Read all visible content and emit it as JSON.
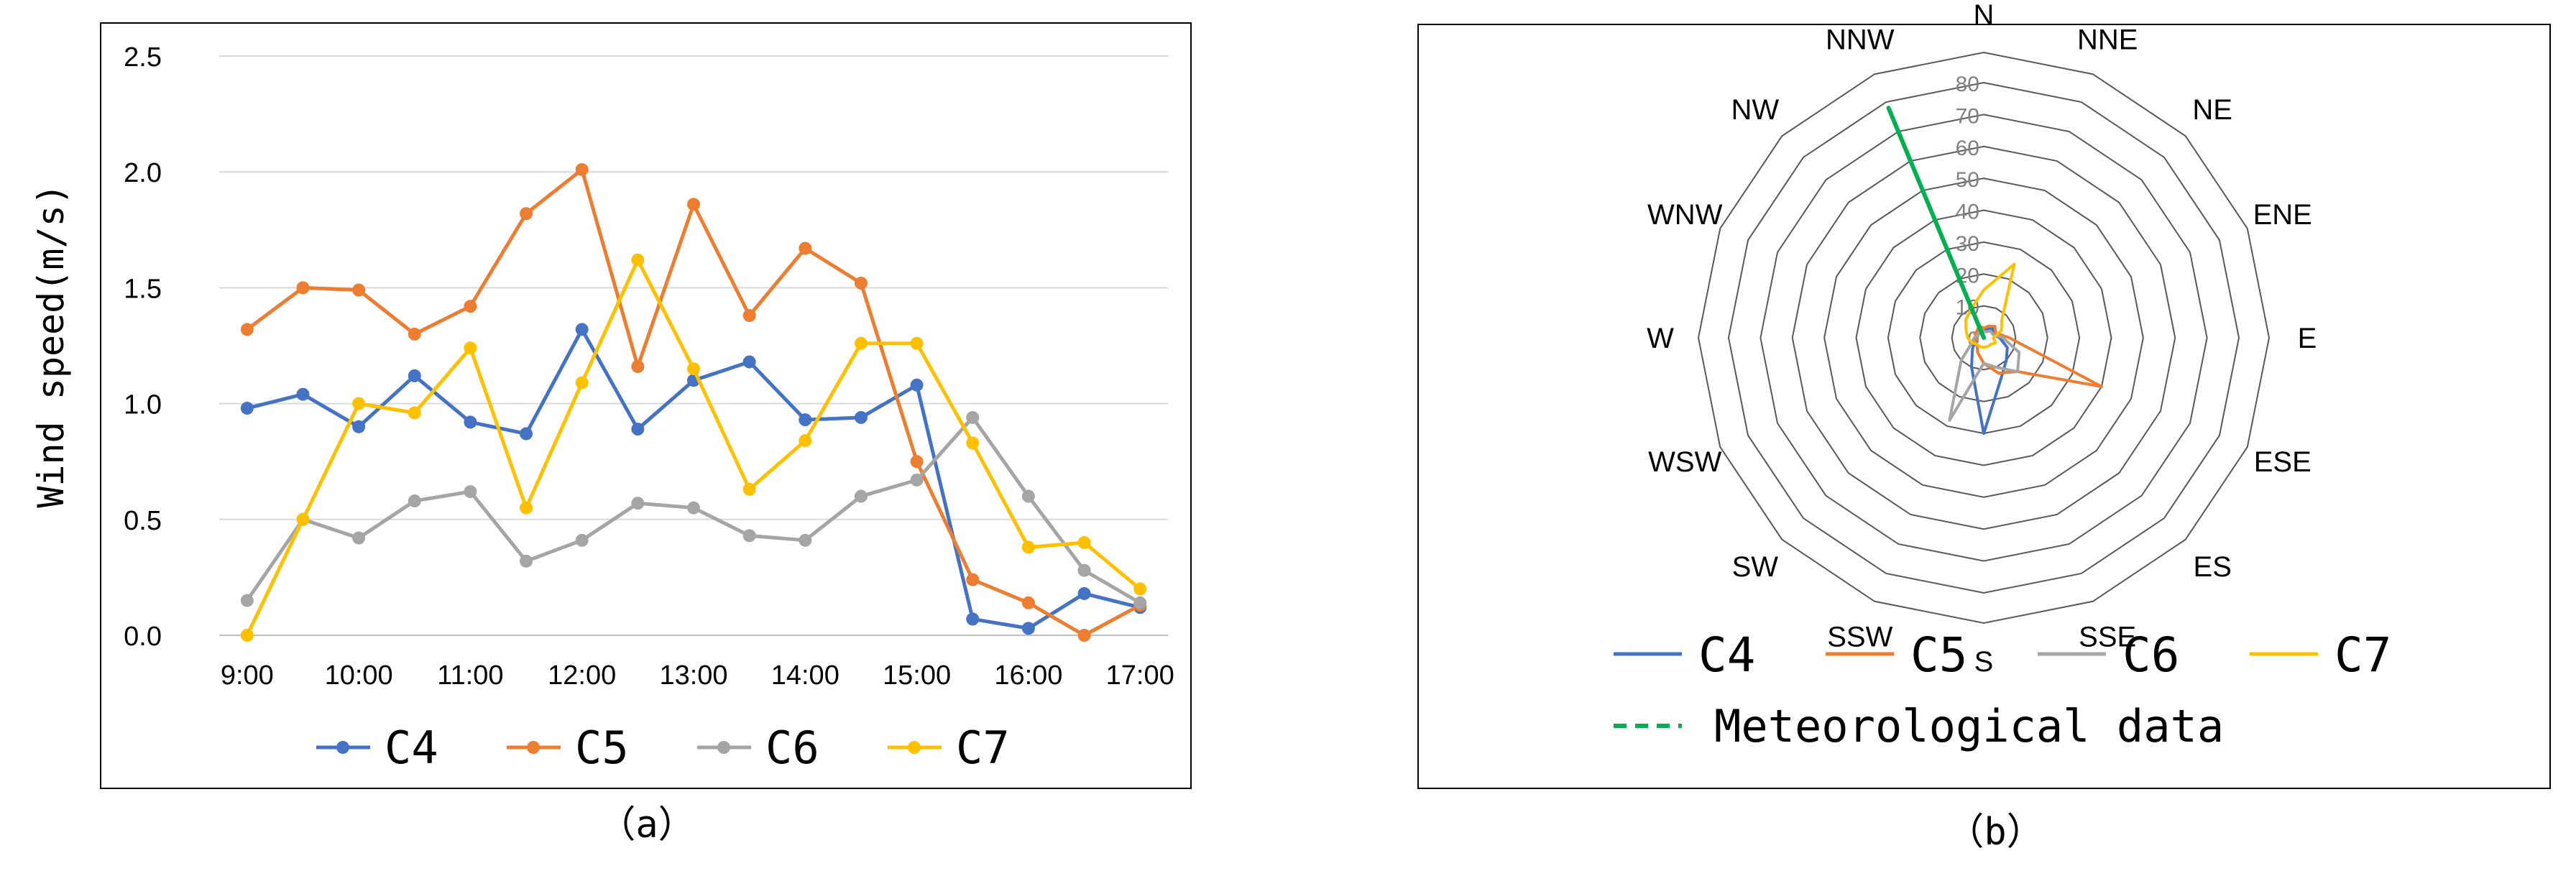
{
  "colors": {
    "C4": "#4472C4",
    "C5": "#ED7D31",
    "C6": "#A5A5A5",
    "C7": "#FFC000",
    "Meteorological": "#00B050",
    "grid": "#D9D9D9",
    "frame": "#000000"
  },
  "chart_data": [
    {
      "type": "line",
      "panel_label": "（a）",
      "ylabel": "Wind speed(m/s)",
      "xlabel": "",
      "ylim": [
        0,
        2.5
      ],
      "yticks": [
        "0.0",
        "0.5",
        "1.0",
        "1.5",
        "2.0",
        "2.5"
      ],
      "x": [
        "9:00",
        "9:30",
        "10:00",
        "10:30",
        "11:00",
        "11:30",
        "12:00",
        "12:30",
        "13:00",
        "13:30",
        "14:00",
        "14:30",
        "15:00",
        "15:30",
        "16:00",
        "16:30",
        "17:00"
      ],
      "xtick_labels": [
        "9:00",
        "10:00",
        "11:00",
        "12:00",
        "13:00",
        "14:00",
        "15:00",
        "16:00",
        "17:00"
      ],
      "legend_position": "bottom",
      "series": [
        {
          "name": "C4",
          "values": [
            0.98,
            1.04,
            0.9,
            1.12,
            0.92,
            0.87,
            1.32,
            0.89,
            1.1,
            1.18,
            0.93,
            0.94,
            1.08,
            0.07,
            0.03,
            0.18,
            0.12
          ]
        },
        {
          "name": "C5",
          "values": [
            1.32,
            1.5,
            1.49,
            1.3,
            1.42,
            1.82,
            2.01,
            1.16,
            1.86,
            1.38,
            1.67,
            1.52,
            0.75,
            0.24,
            0.14,
            0.0,
            0.13
          ]
        },
        {
          "name": "C6",
          "values": [
            0.15,
            0.5,
            0.42,
            0.58,
            0.62,
            0.32,
            0.41,
            0.57,
            0.55,
            0.43,
            0.41,
            0.6,
            0.67,
            0.94,
            0.6,
            0.28,
            0.14
          ]
        },
        {
          "name": "C7",
          "values": [
            0.0,
            0.5,
            1.0,
            0.96,
            1.24,
            0.55,
            1.09,
            1.62,
            1.15,
            0.63,
            0.84,
            1.26,
            1.26,
            0.83,
            0.38,
            0.4,
            0.2
          ]
        }
      ]
    },
    {
      "type": "radar",
      "panel_label": "（b）",
      "rlim": [
        0,
        80
      ],
      "rticks": [
        "0",
        "10",
        "20",
        "30",
        "40",
        "50",
        "60",
        "70",
        "80"
      ],
      "directions": [
        "N",
        "NNE",
        "NE",
        "ENE",
        "E",
        "ESE",
        "ES",
        "SSE",
        "S",
        "SSW",
        "SW",
        "WSW",
        "W",
        "WNW",
        "NW",
        "NNW"
      ],
      "legend_position": "bottom",
      "series": [
        {
          "name": "C4",
          "style": "solid",
          "values": [
            2,
            3,
            4,
            3,
            5,
            8,
            10,
            14,
            30,
            10,
            5,
            3,
            2,
            2,
            2,
            3
          ]
        },
        {
          "name": "C5",
          "style": "solid",
          "values": [
            3,
            4,
            5,
            4,
            8,
            40,
            15,
            12,
            8,
            5,
            3,
            3,
            2,
            3,
            3,
            4
          ]
        },
        {
          "name": "C6",
          "style": "solid",
          "values": [
            2,
            2,
            3,
            3,
            6,
            12,
            15,
            10,
            8,
            28,
            10,
            4,
            3,
            2,
            2,
            3
          ]
        },
        {
          "name": "C7",
          "style": "solid",
          "values": [
            15,
            25,
            8,
            6,
            3,
            4,
            3,
            3,
            3,
            3,
            3,
            4,
            5,
            6,
            8,
            10
          ]
        },
        {
          "name": "Meteorological data",
          "style": "dashed",
          "values": [
            0,
            0,
            0,
            0,
            0,
            0,
            0,
            0,
            0,
            0,
            0,
            0,
            0,
            0,
            0,
            78
          ]
        }
      ]
    }
  ]
}
